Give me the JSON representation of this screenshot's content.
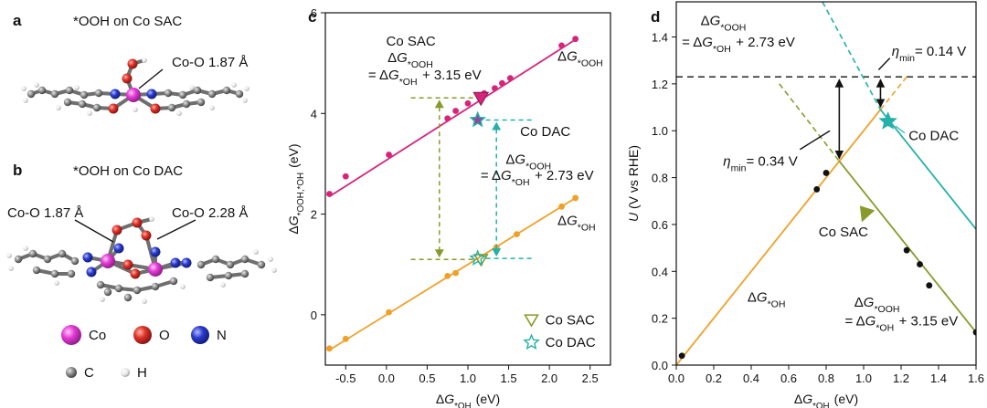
{
  "panel_a": {
    "letter": "a",
    "title": "*OOH on Co SAC",
    "bond": "Co-O 1.87 Å"
  },
  "panel_b": {
    "letter": "b",
    "title": "*OOH on Co DAC",
    "bond_left": "Co-O 1.87 Å",
    "bond_right": "Co-O 2.28 Å"
  },
  "legend_atoms": [
    {
      "symbol": "Co",
      "color": "#e23ad6"
    },
    {
      "symbol": "O",
      "color": "#e03028"
    },
    {
      "symbol": "N",
      "color": "#2a3ad0"
    },
    {
      "symbol": "C",
      "color": "#8a8a8a"
    },
    {
      "symbol": "H",
      "color": "#ececec"
    }
  ],
  "colors": {
    "ooh": "#d6247a",
    "oh": "#f0a028",
    "sac": "#8a9a2a",
    "dac": "#23b1a8",
    "black": "#111111"
  },
  "chart_data": [
    {
      "letter": "c",
      "type": "scatter",
      "xlim": [
        -0.75,
        2.75
      ],
      "ylim": [
        -1.0,
        6.0
      ],
      "xticks": [
        "-0.5",
        "0.0",
        "0.5",
        "1.0",
        "1.5",
        "2.0",
        "2.5"
      ],
      "xtick_values": [
        -0.5,
        0.0,
        0.5,
        1.0,
        1.5,
        2.0,
        2.5
      ],
      "yticks": [
        "0",
        "2",
        "4",
        "6"
      ],
      "ytick_values": [
        0,
        2,
        4,
        6
      ],
      "ylabel": "ΔG*OOH,*OH (eV)",
      "xlabel": "ΔG*OH (eV)",
      "series": [
        {
          "name": "ΔG*OOH",
          "points": [
            [
              -0.7,
              2.4
            ],
            [
              -0.5,
              2.75
            ],
            [
              0.03,
              3.18
            ],
            [
              0.75,
              3.9
            ],
            [
              0.85,
              4.05
            ],
            [
              1.0,
              4.2
            ],
            [
              1.2,
              4.4
            ],
            [
              1.33,
              4.5
            ],
            [
              1.42,
              4.6
            ],
            [
              1.52,
              4.7
            ],
            [
              2.15,
              5.35
            ],
            [
              2.32,
              5.48
            ]
          ],
          "fit": [
            [
              -0.7,
              2.35
            ],
            [
              2.35,
              5.5
            ]
          ]
        },
        {
          "name": "ΔG*OH",
          "points": [
            [
              -0.7,
              -0.67
            ],
            [
              -0.5,
              -0.48
            ],
            [
              0.03,
              0.05
            ],
            [
              0.75,
              0.77
            ],
            [
              0.85,
              0.83
            ],
            [
              1.35,
              1.34
            ],
            [
              1.6,
              1.6
            ],
            [
              2.15,
              2.15
            ],
            [
              2.32,
              2.32
            ]
          ],
          "fit": [
            [
              -0.7,
              -0.7
            ],
            [
              2.35,
              2.35
            ]
          ]
        }
      ],
      "markers": {
        "sac_ooh": [
          1.16,
          4.31
        ],
        "sac_oh": [
          1.16,
          1.1
        ],
        "dac_ooh": [
          1.12,
          3.87
        ],
        "dac_oh": [
          1.12,
          1.12
        ]
      },
      "annotations": {
        "sac_title": "Co SAC",
        "sac_l1": "ΔG*OOH",
        "sac_l2": "= ΔG*OH + 3.15 eV",
        "dac_title": "Co DAC",
        "dac_l1": "ΔG*OOH",
        "dac_l2": "= ΔG*OH + 2.73 eV",
        "label_ooh": "ΔG*OOH",
        "label_oh": "ΔG*OH"
      },
      "legend": [
        {
          "label": "Co SAC",
          "marker": "triangle-down"
        },
        {
          "label": "Co DAC",
          "marker": "star"
        }
      ]
    },
    {
      "letter": "d",
      "type": "line",
      "xlim": [
        0.0,
        1.6
      ],
      "ylim": [
        0.0,
        1.55
      ],
      "xticks": [
        "0.0",
        "0.2",
        "0.4",
        "0.6",
        "0.8",
        "1.0",
        "1.2",
        "1.4",
        "1.6"
      ],
      "xtick_values": [
        0.0,
        0.2,
        0.4,
        0.6,
        0.8,
        1.0,
        1.2,
        1.4,
        1.6
      ],
      "yticks": [
        "0.0",
        "0.2",
        "0.4",
        "0.6",
        "0.8",
        "1.0",
        "1.2",
        "1.4"
      ],
      "ytick_values": [
        0.0,
        0.2,
        0.4,
        0.6,
        0.8,
        1.0,
        1.2,
        1.4
      ],
      "ylabel": "U (V vs RHE)",
      "xlabel": "ΔG*OH (eV)",
      "equilibrium": 1.23,
      "lines": [
        {
          "name": "ΔG*OH",
          "color_key": "oh",
          "solid": [
            [
              0.0,
              0.0
            ],
            [
              1.09,
              1.09
            ]
          ],
          "dashed": [
            [
              1.09,
              1.09
            ],
            [
              1.23,
              1.23
            ]
          ]
        },
        {
          "name": "Co SAC",
          "color_key": "sac",
          "solid": [
            [
              0.87,
              0.87
            ],
            [
              1.6,
              0.14
            ]
          ],
          "dashed": [
            [
              0.55,
              1.2
            ],
            [
              0.87,
              0.87
            ]
          ]
        },
        {
          "name": "Co DAC",
          "color_key": "dac",
          "solid": [
            [
              1.09,
              1.09
            ],
            [
              1.6,
              0.58
            ]
          ],
          "dashed": [
            [
              0.78,
              1.55
            ],
            [
              1.09,
              1.09
            ]
          ]
        }
      ],
      "points": [
        [
          0.03,
          0.04
        ],
        [
          0.75,
          0.75
        ],
        [
          0.8,
          0.82
        ],
        [
          1.23,
          0.49
        ],
        [
          1.3,
          0.43
        ],
        [
          1.35,
          0.34
        ],
        [
          1.6,
          0.14
        ]
      ],
      "markers": {
        "dac_star": [
          1.13,
          1.04
        ]
      },
      "arrows": [
        {
          "x": 0.87,
          "from": 1.23,
          "to": 0.87
        },
        {
          "x": 1.09,
          "from": 1.23,
          "to": 1.09
        }
      ],
      "annotations": {
        "eta_big_sym": "η",
        "eta_big_sub": "min",
        "eta_big_val": "= 0.34 V",
        "eta_small_sym": "η",
        "eta_small_sub": "min",
        "eta_small_val": "= 0.14 V",
        "dac_label": "Co DAC",
        "sac_label": "Co SAC",
        "oh_label": "ΔG*OH",
        "dac_eq1": "ΔG*OOH",
        "dac_eq2": "= ΔG*OH + 2.73 eV",
        "sac_eq1": "ΔG*OOH",
        "sac_eq2": "= ΔG*OH + 3.15 eV"
      }
    }
  ]
}
